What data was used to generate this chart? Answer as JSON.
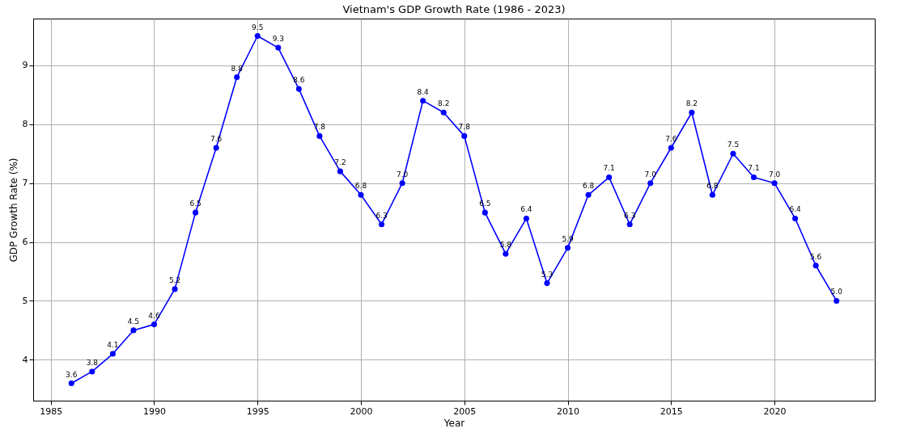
{
  "chart_data": {
    "type": "line",
    "title": "Vietnam's GDP Growth Rate (1986 - 2023)",
    "xlabel": "Year",
    "ylabel": "GDP Growth Rate (%)",
    "x": [
      1986,
      1987,
      1988,
      1989,
      1990,
      1991,
      1992,
      1993,
      1994,
      1995,
      1996,
      1997,
      1998,
      1999,
      2000,
      2001,
      2002,
      2003,
      2004,
      2005,
      2006,
      2007,
      2008,
      2009,
      2010,
      2011,
      2012,
      2013,
      2014,
      2015,
      2016,
      2017,
      2018,
      2019,
      2020,
      2021,
      2022,
      2023
    ],
    "series": [
      {
        "color": "#0000ff",
        "values": [
          3.6,
          3.8,
          4.1,
          4.5,
          4.6,
          5.2,
          6.5,
          7.6,
          8.8,
          9.5,
          9.3,
          8.6,
          7.8,
          7.2,
          6.8,
          6.3,
          7.0,
          8.4,
          8.2,
          7.8,
          6.5,
          5.8,
          6.4,
          5.3,
          5.9,
          6.8,
          7.1,
          6.3,
          7.0,
          7.6,
          8.2,
          6.8,
          7.5,
          7.1,
          7.0,
          6.4,
          5.6,
          5.0
        ],
        "value_labels": [
          "3.6",
          "3.8",
          "4.1",
          "4.5",
          "4.6",
          "5.2",
          "6.5",
          "7.6",
          "8.8",
          "9.5",
          "9.3",
          "8.6",
          "7.8",
          "7.2",
          "6.8",
          "6.3",
          "7.0",
          "8.4",
          "8.2",
          "7.8",
          "6.5",
          "5.8",
          "6.4",
          "5.3",
          "5.9",
          "6.8",
          "7.1",
          "6.3",
          "7.0",
          "7.6",
          "8.2",
          "6.8",
          "7.5",
          "7.1",
          "7.0",
          "6.4",
          "5.6",
          "5.0"
        ]
      }
    ],
    "xlim": [
      1984.15,
      2024.85
    ],
    "xticks": [
      1985,
      1990,
      1995,
      2000,
      2005,
      2010,
      2015,
      2020
    ],
    "ylim": [
      3.305,
      9.795
    ],
    "yticks": [
      4,
      5,
      6,
      7,
      8,
      9
    ],
    "grid": true,
    "marker": "circle",
    "line_style": "solid"
  }
}
